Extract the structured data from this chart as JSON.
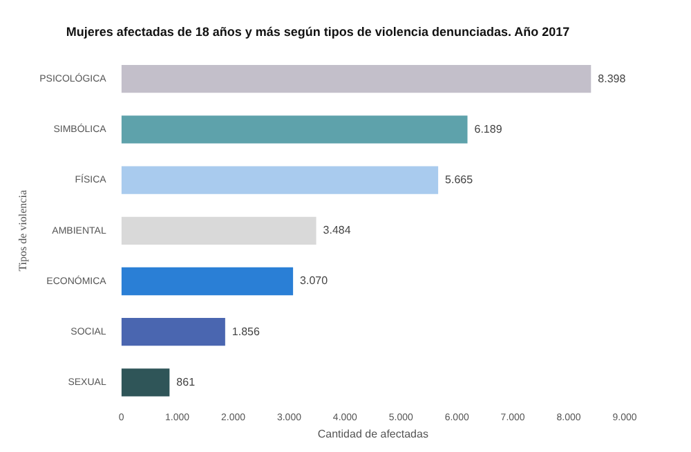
{
  "chart_data": {
    "type": "bar",
    "orientation": "horizontal",
    "title": "Mujeres afectadas de 18 años y más según tipos de violencia denunciadas. Año 2017",
    "xlabel": "Cantidad de afectadas",
    "ylabel": "Tipos de violencia",
    "categories": [
      "PSICOLÓGICA",
      "SIMBÓLICA",
      "FÍSICA",
      "AMBIENTAL",
      "ECONÓMICA",
      "SOCIAL",
      "SEXUAL"
    ],
    "values": [
      8398,
      6189,
      5665,
      3484,
      3070,
      1856,
      861
    ],
    "colors": [
      "#c3bfca",
      "#5ea2ab",
      "#a9cbee",
      "#d9d9d9",
      "#2a7fd6",
      "#4a66b0",
      "#2f5558"
    ],
    "value_labels": [
      "8.398",
      "6.189",
      "5.665",
      "3.484",
      "3.070",
      "1.856",
      "861"
    ],
    "xlim": [
      0,
      9000
    ],
    "xticks": [
      0,
      {
        "value": 1000,
        "label": "1.000"
      },
      {
        "value": 2000,
        "label": "2.000"
      },
      {
        "value": 3000,
        "label": "3.000"
      },
      {
        "value": 4000,
        "label": "4.000"
      },
      {
        "value": 5000,
        "label": "5.000"
      },
      {
        "value": 6000,
        "label": "6.000"
      },
      {
        "value": 7000,
        "label": "7.000"
      },
      {
        "value": 8000,
        "label": "8.000"
      },
      {
        "value": 9000,
        "label": "9.000"
      }
    ],
    "grid": false,
    "legend": false
  }
}
